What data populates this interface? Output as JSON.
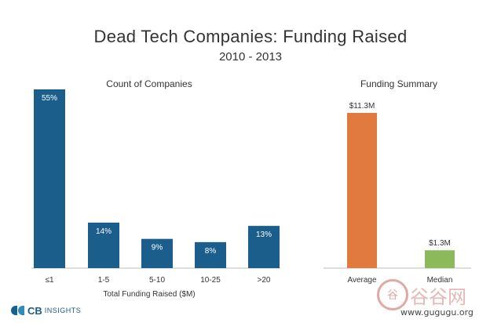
{
  "header": {
    "title": "Dead Tech Companies: Funding Raised",
    "subtitle": "2010 - 2013"
  },
  "chart_data": [
    {
      "type": "bar",
      "title": "Count of Companies",
      "xlabel": "Total Funding Raised ($M)",
      "ylabel": "",
      "categories": [
        "≤1",
        "1-5",
        "5-10",
        "10-25",
        ">20"
      ],
      "values": [
        55,
        14,
        9,
        8,
        13
      ],
      "value_labels": [
        "55%",
        "14%",
        "9%",
        "8%",
        "13%"
      ],
      "ylim": [
        0,
        55
      ],
      "grid": false,
      "color": "#1b5e8c"
    },
    {
      "type": "bar",
      "title": "Funding Summary",
      "xlabel": "",
      "ylabel": "",
      "categories": [
        "Average",
        "Median"
      ],
      "values": [
        11.3,
        1.3
      ],
      "value_labels": [
        "$11.3M",
        "$1.3M"
      ],
      "ylim": [
        0,
        11.3
      ],
      "grid": false,
      "colors": [
        "#e07a3f",
        "#8cb95a"
      ]
    }
  ],
  "footer": {
    "brand_cb": "CB",
    "brand_rest": "INSIGHTS",
    "watermark_glyph": "谷",
    "watermark_text": "谷谷网",
    "watermark_url": "www.gugugu.org"
  }
}
